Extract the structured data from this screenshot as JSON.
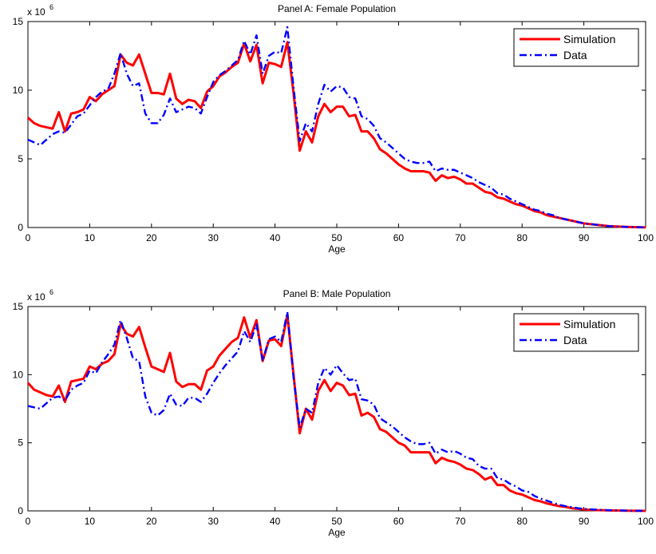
{
  "chart_data": [
    {
      "type": "line",
      "title": "Panel A: Female Population",
      "xlabel": "Age",
      "ylabel": "",
      "scale_label": "x 10",
      "scale_exponent": "6",
      "xlim": [
        0,
        100
      ],
      "ylim": [
        0,
        15
      ],
      "xticks": [
        0,
        10,
        20,
        30,
        40,
        50,
        60,
        70,
        80,
        90,
        100
      ],
      "yticks": [
        0,
        5,
        10,
        15
      ],
      "grid": false,
      "legend_position": "top-right",
      "x": [
        0,
        1,
        2,
        3,
        4,
        5,
        6,
        7,
        8,
        9,
        10,
        11,
        12,
        13,
        14,
        15,
        16,
        17,
        18,
        19,
        20,
        21,
        22,
        23,
        24,
        25,
        26,
        27,
        28,
        29,
        30,
        31,
        32,
        33,
        34,
        35,
        36,
        37,
        38,
        39,
        40,
        41,
        42,
        43,
        44,
        45,
        46,
        47,
        48,
        49,
        50,
        51,
        52,
        53,
        54,
        55,
        56,
        57,
        58,
        59,
        60,
        61,
        62,
        63,
        64,
        65,
        66,
        67,
        68,
        69,
        70,
        71,
        72,
        73,
        74,
        75,
        76,
        77,
        78,
        79,
        80,
        81,
        82,
        83,
        84,
        85,
        86,
        87,
        88,
        89,
        90,
        91,
        92,
        93,
        94,
        95,
        96,
        97,
        98,
        99,
        100
      ],
      "series": [
        {
          "name": "Simulation",
          "color": "#ff0000",
          "style": "solid",
          "values": [
            8.0,
            7.6,
            7.4,
            7.3,
            7.2,
            8.4,
            7.0,
            8.3,
            8.4,
            8.6,
            9.5,
            9.2,
            9.7,
            10.0,
            10.3,
            12.6,
            12.0,
            11.8,
            12.6,
            11.2,
            9.8,
            9.8,
            9.7,
            11.2,
            9.4,
            9.0,
            9.3,
            9.2,
            8.7,
            9.9,
            10.3,
            11.0,
            11.3,
            11.7,
            12.0,
            13.4,
            12.1,
            13.3,
            10.5,
            12.0,
            11.9,
            11.7,
            13.5,
            9.8,
            5.6,
            7.0,
            6.2,
            8.1,
            9.0,
            8.4,
            8.8,
            8.8,
            8.1,
            8.2,
            7.0,
            7.0,
            6.5,
            5.7,
            5.4,
            5.0,
            4.6,
            4.3,
            4.1,
            4.1,
            4.1,
            4.0,
            3.4,
            3.8,
            3.6,
            3.7,
            3.5,
            3.2,
            3.2,
            2.9,
            2.6,
            2.5,
            2.2,
            2.1,
            1.9,
            1.7,
            1.6,
            1.4,
            1.2,
            1.1,
            0.9,
            0.8,
            0.7,
            0.6,
            0.5,
            0.4,
            0.3,
            0.25,
            0.2,
            0.15,
            0.1,
            0.08,
            0.06,
            0.04,
            0.03,
            0.02,
            0.01
          ]
        },
        {
          "name": "Data",
          "color": "#0000ff",
          "style": "dashdot",
          "values": [
            6.4,
            6.2,
            6.0,
            6.4,
            6.8,
            7.0,
            6.9,
            7.5,
            8.1,
            8.3,
            8.9,
            9.5,
            9.9,
            10.1,
            11.2,
            12.7,
            11.2,
            10.3,
            10.5,
            8.3,
            7.6,
            7.6,
            8.2,
            9.4,
            8.4,
            8.6,
            8.8,
            8.7,
            8.3,
            9.5,
            10.6,
            11.1,
            11.4,
            11.8,
            12.2,
            13.6,
            12.6,
            14.0,
            11.2,
            12.5,
            12.8,
            12.7,
            14.6,
            10.2,
            6.3,
            7.6,
            7.0,
            9.0,
            10.4,
            9.9,
            10.3,
            10.2,
            9.5,
            9.4,
            8.1,
            7.9,
            7.4,
            6.5,
            6.2,
            5.8,
            5.4,
            5.0,
            4.8,
            4.7,
            4.7,
            4.8,
            4.1,
            4.3,
            4.2,
            4.2,
            4.0,
            3.8,
            3.6,
            3.3,
            3.1,
            2.9,
            2.5,
            2.4,
            2.1,
            1.9,
            1.7,
            1.5,
            1.3,
            1.2,
            1.0,
            0.9,
            0.7,
            0.6,
            0.5,
            0.4,
            0.3,
            0.25,
            0.2,
            0.15,
            0.1,
            0.08,
            0.06,
            0.04,
            0.03,
            0.02,
            0.01
          ]
        }
      ]
    },
    {
      "type": "line",
      "title": "Panel B: Male Population",
      "xlabel": "Age",
      "ylabel": "",
      "scale_label": "x 10",
      "scale_exponent": "6",
      "xlim": [
        0,
        100
      ],
      "ylim": [
        0,
        15
      ],
      "xticks": [
        0,
        10,
        20,
        30,
        40,
        50,
        60,
        70,
        80,
        90,
        100
      ],
      "yticks": [
        0,
        5,
        10,
        15
      ],
      "grid": false,
      "legend_position": "top-right",
      "x": [
        0,
        1,
        2,
        3,
        4,
        5,
        6,
        7,
        8,
        9,
        10,
        11,
        12,
        13,
        14,
        15,
        16,
        17,
        18,
        19,
        20,
        21,
        22,
        23,
        24,
        25,
        26,
        27,
        28,
        29,
        30,
        31,
        32,
        33,
        34,
        35,
        36,
        37,
        38,
        39,
        40,
        41,
        42,
        43,
        44,
        45,
        46,
        47,
        48,
        49,
        50,
        51,
        52,
        53,
        54,
        55,
        56,
        57,
        58,
        59,
        60,
        61,
        62,
        63,
        64,
        65,
        66,
        67,
        68,
        69,
        70,
        71,
        72,
        73,
        74,
        75,
        76,
        77,
        78,
        79,
        80,
        81,
        82,
        83,
        84,
        85,
        86,
        87,
        88,
        89,
        90,
        91,
        92,
        93,
        94,
        95,
        96,
        97,
        98,
        99,
        100
      ],
      "series": [
        {
          "name": "Simulation",
          "color": "#ff0000",
          "style": "solid",
          "values": [
            9.4,
            8.9,
            8.7,
            8.5,
            8.4,
            9.2,
            8.0,
            9.5,
            9.6,
            9.7,
            10.6,
            10.4,
            10.8,
            11.0,
            11.5,
            13.7,
            13.0,
            12.8,
            13.5,
            12.0,
            10.6,
            10.4,
            10.2,
            11.6,
            9.5,
            9.1,
            9.3,
            9.3,
            8.9,
            10.3,
            10.6,
            11.4,
            11.9,
            12.4,
            12.7,
            14.2,
            12.7,
            14.0,
            11.0,
            12.5,
            12.6,
            12.1,
            14.4,
            10.0,
            5.7,
            7.5,
            6.7,
            8.8,
            9.6,
            8.8,
            9.4,
            9.2,
            8.5,
            8.6,
            7.0,
            7.2,
            6.9,
            6.0,
            5.8,
            5.4,
            5.0,
            4.8,
            4.3,
            4.3,
            4.3,
            4.3,
            3.5,
            3.9,
            3.7,
            3.6,
            3.4,
            3.1,
            3.0,
            2.7,
            2.3,
            2.5,
            1.9,
            1.9,
            1.5,
            1.3,
            1.2,
            1.0,
            0.8,
            0.7,
            0.55,
            0.45,
            0.35,
            0.3,
            0.2,
            0.15,
            0.1,
            0.08,
            0.06,
            0.05,
            0.04,
            0.03,
            0.02,
            0.015,
            0.01,
            0.005,
            0.0
          ]
        },
        {
          "name": "Data",
          "color": "#0000ff",
          "style": "dashdot",
          "values": [
            7.7,
            7.6,
            7.5,
            7.9,
            8.3,
            8.4,
            8.1,
            8.9,
            9.2,
            9.4,
            10.3,
            10.1,
            10.9,
            11.5,
            12.2,
            14.0,
            12.7,
            11.2,
            11.0,
            8.4,
            7.2,
            7.0,
            7.4,
            8.6,
            7.8,
            7.7,
            8.3,
            8.3,
            8.0,
            8.6,
            9.4,
            10.1,
            10.7,
            11.2,
            11.7,
            13.2,
            12.4,
            13.7,
            11.0,
            12.6,
            12.8,
            12.4,
            14.6,
            9.8,
            6.1,
            7.5,
            7.2,
            9.4,
            10.5,
            10.0,
            10.7,
            10.1,
            9.6,
            9.7,
            8.2,
            8.1,
            7.8,
            6.8,
            6.5,
            6.2,
            5.8,
            5.4,
            5.1,
            4.9,
            4.9,
            5.0,
            4.2,
            4.5,
            4.3,
            4.4,
            4.2,
            3.9,
            3.8,
            3.3,
            3.1,
            3.1,
            2.4,
            2.3,
            2.0,
            1.8,
            1.5,
            1.4,
            1.1,
            0.9,
            0.75,
            0.6,
            0.45,
            0.35,
            0.28,
            0.2,
            0.15,
            0.12,
            0.09,
            0.07,
            0.05,
            0.04,
            0.03,
            0.02,
            0.01,
            0.005,
            0.0
          ]
        }
      ]
    }
  ]
}
